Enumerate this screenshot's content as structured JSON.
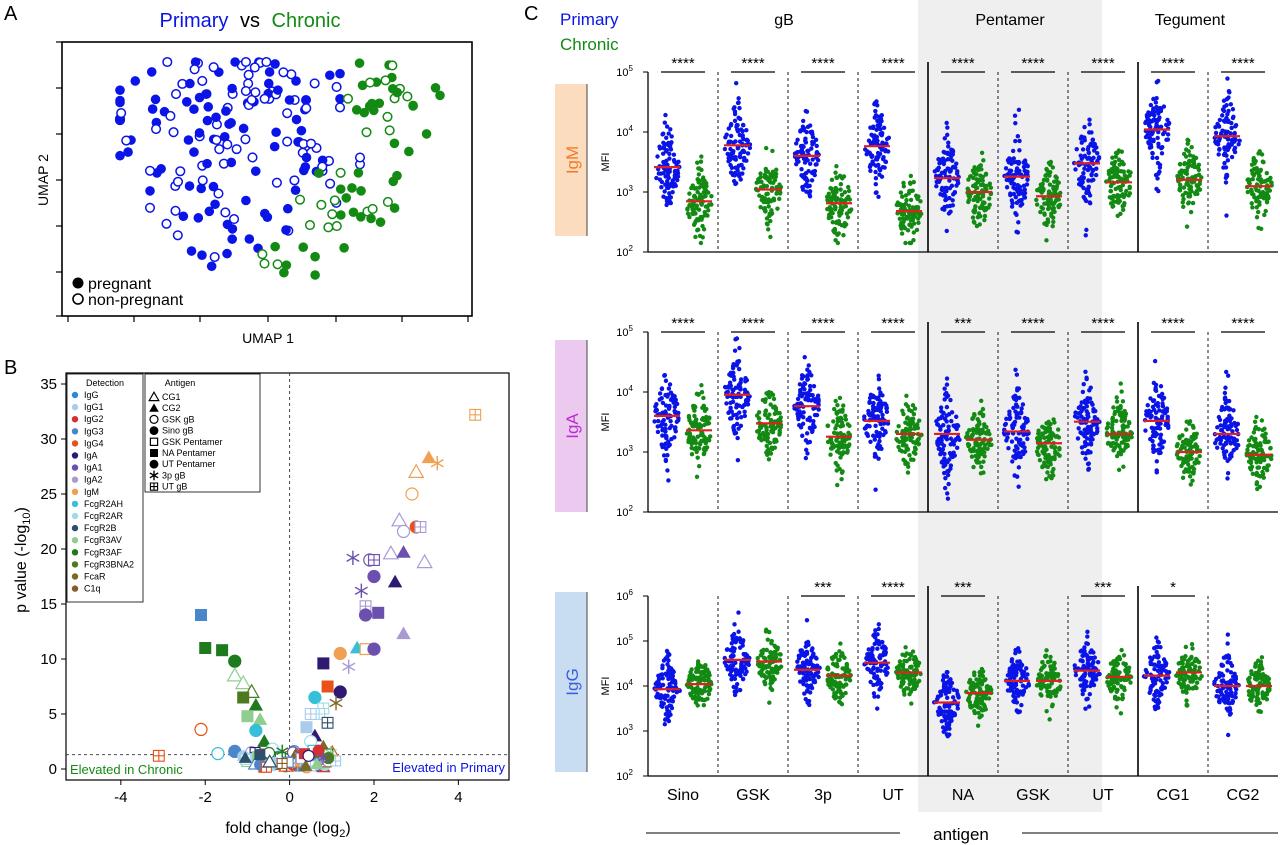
{
  "panel_letters": {
    "a": "A",
    "b": "B",
    "c": "C"
  },
  "colors": {
    "primary": "#0a14e6",
    "chronic": "#138a13",
    "median": "#e02020",
    "pentamer_bg": "#efefef",
    "igm_box": "#fcdcbf",
    "iga_box": "#eccaf0",
    "igg_box": "#c8dcf2",
    "igm_text": "#f07c26",
    "iga_text": "#b72fd0",
    "igg_text": "#3b5fd8"
  },
  "chart_data": [
    {
      "type": "scatter",
      "panel": "A",
      "title": {
        "primary": "Primary",
        "vs": "vs",
        "chronic": "Chronic"
      },
      "xlabel": "UMAP 1",
      "ylabel": "UMAP 2",
      "legend": {
        "pregnant": "pregnant",
        "non_pregnant": "non-pregnant",
        "position": "bottom-left"
      },
      "series": [
        {
          "name": "Primary",
          "note": "blue points, left region"
        },
        {
          "name": "Chronic",
          "note": "green points, right region"
        }
      ]
    },
    {
      "type": "scatter",
      "panel": "B",
      "xlabel": "fold change (log",
      "xlabel_sub": "2",
      "xlabel_end": ")",
      "ylabel": "p value (-log",
      "ylabel_sub": "10",
      "ylabel_end": ")",
      "xlim": [
        -5.3,
        5.2
      ],
      "ylim": [
        -1,
        36
      ],
      "xticks": [
        "-4",
        "-2",
        "0",
        "2",
        "4"
      ],
      "yticks": [
        "0",
        "5",
        "10",
        "15",
        "20",
        "25",
        "30",
        "35"
      ],
      "threshold_y": 1.3,
      "left_annotation": "Elevated in Chronic",
      "right_annotation": "Elevated in Primary",
      "detection_legend": {
        "title": "Detection",
        "items": [
          {
            "label": "IgG",
            "color": "#2e86de"
          },
          {
            "label": "IgG1",
            "color": "#a9cbee"
          },
          {
            "label": "IgG2",
            "color": "#d63031"
          },
          {
            "label": "IgG3",
            "color": "#4a86c8"
          },
          {
            "label": "IgG4",
            "color": "#e8511a"
          },
          {
            "label": "IgA",
            "color": "#2e1a73"
          },
          {
            "label": "IgA1",
            "color": "#6b50b0"
          },
          {
            "label": "IgA2",
            "color": "#a99ad6"
          },
          {
            "label": "IgM",
            "color": "#f0a050"
          },
          {
            "label": "FcgR2AH",
            "color": "#35c0d8"
          },
          {
            "label": "FcgR2AR",
            "color": "#9edbe8"
          },
          {
            "label": "FcgR2B",
            "color": "#2f4f6b"
          },
          {
            "label": "FcgR3AV",
            "color": "#8fce8f"
          },
          {
            "label": "FcgR3AF",
            "color": "#1d7a1d"
          },
          {
            "label": "FcgR3BNA2",
            "color": "#4d7a1f"
          },
          {
            "label": "FcaR",
            "color": "#7a6a2a"
          },
          {
            "label": "C1q",
            "color": "#8a5a2a"
          }
        ]
      },
      "antigen_legend": {
        "title": "Antigen",
        "items": [
          {
            "label": "CG1",
            "shape": "triangle-open"
          },
          {
            "label": "CG2",
            "shape": "triangle"
          },
          {
            "label": "GSK gB",
            "shape": "circle-open"
          },
          {
            "label": "Sino gB",
            "shape": "circle"
          },
          {
            "label": "GSK Pentamer",
            "shape": "square-open"
          },
          {
            "label": "NA Pentamer",
            "shape": "square"
          },
          {
            "label": "UT Pentamer",
            "shape": "circle"
          },
          {
            "label": "3p gB",
            "shape": "asterisk"
          },
          {
            "label": "UT gB",
            "shape": "square-plus"
          }
        ]
      },
      "points": [
        {
          "x": 4.4,
          "y": 32.2,
          "c": 8,
          "s": "square-plus"
        },
        {
          "x": 3.3,
          "y": 28.3,
          "c": 8,
          "s": "triangle"
        },
        {
          "x": 3.5,
          "y": 27.8,
          "c": 8,
          "s": "asterisk"
        },
        {
          "x": 3.0,
          "y": 27.0,
          "c": 8,
          "s": "triangle-open"
        },
        {
          "x": 2.9,
          "y": 25.0,
          "c": 8,
          "s": "circle-open"
        },
        {
          "x": 3.0,
          "y": 22.0,
          "c": 4,
          "s": "circle"
        },
        {
          "x": 3.1,
          "y": 22.0,
          "c": 7,
          "s": "square-plus"
        },
        {
          "x": 2.6,
          "y": 22.6,
          "c": 7,
          "s": "triangle-open"
        },
        {
          "x": 2.7,
          "y": 21.6,
          "c": 7,
          "s": "circle-open"
        },
        {
          "x": 3.2,
          "y": 18.8,
          "c": 7,
          "s": "triangle-open"
        },
        {
          "x": 1.5,
          "y": 19.2,
          "c": 6,
          "s": "asterisk"
        },
        {
          "x": 1.9,
          "y": 19.0,
          "c": 6,
          "s": "circle-open"
        },
        {
          "x": 2.0,
          "y": 19.0,
          "c": 6,
          "s": "square-plus"
        },
        {
          "x": 2.4,
          "y": 19.6,
          "c": 7,
          "s": "triangle-open"
        },
        {
          "x": 2.7,
          "y": 19.7,
          "c": 6,
          "s": "triangle"
        },
        {
          "x": 2.0,
          "y": 17.5,
          "c": 6,
          "s": "circle"
        },
        {
          "x": 2.5,
          "y": 17.0,
          "c": 5,
          "s": "triangle"
        },
        {
          "x": 1.7,
          "y": 16.2,
          "c": 6,
          "s": "asterisk"
        },
        {
          "x": 1.8,
          "y": 14.8,
          "c": 7,
          "s": "square-plus"
        },
        {
          "x": 1.8,
          "y": 14.0,
          "c": 6,
          "s": "circle"
        },
        {
          "x": 2.1,
          "y": 14.2,
          "c": 6,
          "s": "square"
        },
        {
          "x": 2.7,
          "y": 12.3,
          "c": 7,
          "s": "triangle"
        },
        {
          "x": 1.6,
          "y": 11.0,
          "c": 9,
          "s": "triangle"
        },
        {
          "x": 1.8,
          "y": 10.9,
          "c": 8,
          "s": "square-open"
        },
        {
          "x": 2.0,
          "y": 10.9,
          "c": 6,
          "s": "circle"
        },
        {
          "x": 1.2,
          "y": 10.5,
          "c": 8,
          "s": "circle"
        },
        {
          "x": 1.4,
          "y": 9.3,
          "c": 7,
          "s": "asterisk"
        },
        {
          "x": 0.8,
          "y": 9.6,
          "c": 5,
          "s": "square"
        },
        {
          "x": 1.2,
          "y": 7.0,
          "c": 5,
          "s": "circle"
        },
        {
          "x": 0.9,
          "y": 7.5,
          "c": 4,
          "s": "square"
        },
        {
          "x": 1.1,
          "y": 6.0,
          "c": 15,
          "s": "asterisk"
        },
        {
          "x": 0.6,
          "y": 6.5,
          "c": 9,
          "s": "circle"
        },
        {
          "x": 0.8,
          "y": 5.5,
          "c": 10,
          "s": "square-plus"
        },
        {
          "x": 0.7,
          "y": 5.0,
          "c": 10,
          "s": "square-plus"
        },
        {
          "x": 0.5,
          "y": 5.0,
          "c": 1,
          "s": "square-plus"
        },
        {
          "x": 0.4,
          "y": 3.8,
          "c": 1,
          "s": "square"
        },
        {
          "x": 0.9,
          "y": 4.2,
          "c": 11,
          "s": "square-plus"
        },
        {
          "x": 0.6,
          "y": 3.0,
          "c": 5,
          "s": "triangle"
        },
        {
          "x": 0.5,
          "y": 2.5,
          "c": 10,
          "s": "circle-open"
        },
        {
          "x": 0.8,
          "y": 2.0,
          "c": 15,
          "s": "triangle"
        },
        {
          "x": -2.1,
          "y": 14.0,
          "c": 3,
          "s": "square"
        },
        {
          "x": -2.0,
          "y": 11.0,
          "c": 13,
          "s": "square"
        },
        {
          "x": -1.6,
          "y": 10.8,
          "c": 13,
          "s": "square"
        },
        {
          "x": -1.3,
          "y": 9.8,
          "c": 13,
          "s": "circle"
        },
        {
          "x": -1.3,
          "y": 8.5,
          "c": 12,
          "s": "triangle-open"
        },
        {
          "x": -1.1,
          "y": 7.8,
          "c": 12,
          "s": "triangle-open"
        },
        {
          "x": -0.9,
          "y": 7.0,
          "c": 14,
          "s": "triangle-open"
        },
        {
          "x": -0.8,
          "y": 5.8,
          "c": 13,
          "s": "triangle"
        },
        {
          "x": -1.1,
          "y": 6.5,
          "c": 14,
          "s": "square"
        },
        {
          "x": -1.0,
          "y": 4.8,
          "c": 12,
          "s": "square"
        },
        {
          "x": -0.7,
          "y": 4.5,
          "c": 12,
          "s": "triangle"
        },
        {
          "x": -0.8,
          "y": 3.5,
          "c": 9,
          "s": "circle"
        },
        {
          "x": -0.6,
          "y": 2.5,
          "c": 13,
          "s": "triangle"
        },
        {
          "x": -2.1,
          "y": 3.6,
          "c": 4,
          "s": "circle-open"
        },
        {
          "x": -1.3,
          "y": 1.6,
          "c": 3,
          "s": "circle"
        },
        {
          "x": -1.7,
          "y": 1.4,
          "c": 9,
          "s": "circle-open"
        },
        {
          "x": -3.1,
          "y": 1.2,
          "c": 4,
          "s": "square-plus"
        },
        {
          "x": -0.4,
          "y": 1.8,
          "c": 10,
          "s": "circle-open"
        },
        {
          "x": -0.5,
          "y": 1.0,
          "c": 16,
          "s": "circle"
        },
        {
          "x": -0.2,
          "y": 0.6,
          "c": 0,
          "s": "square-plus"
        },
        {
          "x": 0.1,
          "y": 1.0,
          "c": 1,
          "s": "circle-open"
        },
        {
          "x": 0.3,
          "y": 0.6,
          "c": 13,
          "s": "square-plus"
        },
        {
          "x": 0.6,
          "y": 0.8,
          "c": 2,
          "s": "square"
        },
        {
          "x": 0.7,
          "y": 0.3,
          "c": 4,
          "s": "triangle"
        },
        {
          "x": 0.8,
          "y": 0.2,
          "c": 2,
          "s": "triangle"
        },
        {
          "x": -0.9,
          "y": 1.5,
          "c": 7,
          "s": "circle-open"
        },
        {
          "x": -0.3,
          "y": 0.4,
          "c": 15,
          "s": "triangle"
        },
        {
          "x": -0.1,
          "y": 0.3,
          "c": 13,
          "s": "circle"
        },
        {
          "x": 0.2,
          "y": 0.3,
          "c": 12,
          "s": "square"
        },
        {
          "x": 0.0,
          "y": 0.5,
          "c": 14,
          "s": "circle-open"
        },
        {
          "x": 0.4,
          "y": 0.2,
          "c": 8,
          "s": "circle"
        },
        {
          "x": -0.6,
          "y": 0.2,
          "c": 4,
          "s": "square"
        }
      ]
    },
    {
      "type": "scatter",
      "panel": "C",
      "legend": {
        "primary": "Primary",
        "chronic": "Chronic",
        "position": "top-left"
      },
      "group_headers": [
        "gB",
        "Pentamer",
        "Tegument"
      ],
      "x_categories": [
        "Sino",
        "GSK",
        "3p",
        "UT",
        "NA",
        "GSK",
        "UT",
        "CG1",
        "CG2"
      ],
      "x_group_index": [
        0,
        0,
        0,
        0,
        1,
        1,
        1,
        2,
        2
      ],
      "xlabel": "antigen",
      "ylabel": "MFI",
      "y_scale": "log",
      "rows": [
        {
          "isotype": "IgM",
          "ylim": [
            100,
            100000
          ],
          "ytick_base": "10",
          "ytick_exps": [
            "2",
            "3",
            "4",
            "5"
          ],
          "significance": [
            "****",
            "****",
            "****",
            "****",
            "****",
            "****",
            "****",
            "****",
            "****"
          ],
          "primary_medians": [
            2600,
            6000,
            4000,
            5800,
            1700,
            1800,
            3000,
            11000,
            8500
          ],
          "chronic_medians": [
            700,
            1100,
            650,
            480,
            1000,
            850,
            1450,
            1600,
            1250
          ]
        },
        {
          "isotype": "IgA",
          "ylim": [
            100,
            100000
          ],
          "ytick_base": "10",
          "ytick_exps": [
            "2",
            "3",
            "4",
            "5"
          ],
          "significance": [
            "****",
            "****",
            "****",
            "****",
            "***",
            "****",
            "****",
            "****",
            "****"
          ],
          "primary_medians": [
            4000,
            9000,
            5800,
            3300,
            2000,
            2200,
            3200,
            3300,
            2000
          ],
          "chronic_medians": [
            2300,
            3000,
            1800,
            2000,
            1600,
            1400,
            2000,
            1000,
            900
          ]
        },
        {
          "isotype": "IgG",
          "ylim": [
            100,
            1000000
          ],
          "ytick_base": "10",
          "ytick_exps": [
            "2",
            "3",
            "4",
            "5",
            "6"
          ],
          "significance": [
            "",
            "",
            "***",
            "****",
            "***",
            "",
            "***",
            "*",
            ""
          ],
          "primary_medians": [
            8500,
            38000,
            23000,
            33000,
            4300,
            13000,
            22000,
            17000,
            10000
          ],
          "chronic_medians": [
            11000,
            35000,
            17000,
            20000,
            7000,
            13000,
            16000,
            20000,
            10000
          ]
        }
      ]
    }
  ]
}
